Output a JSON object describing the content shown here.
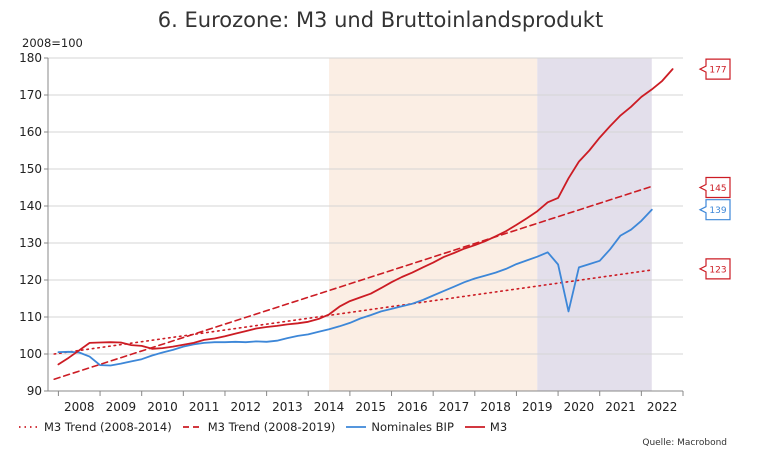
{
  "chart_data": {
    "type": "line",
    "title": "6. Eurozone: M3 und Bruttoinlandsprodukt",
    "y_unit": "2008=100",
    "ylim": [
      90,
      180
    ],
    "y_ticks": [
      "90",
      "100",
      "110",
      "120",
      "130",
      "140",
      "150",
      "160",
      "170",
      "180"
    ],
    "x_ticks": [
      "2008",
      "2009",
      "2010",
      "2011",
      "2012",
      "2013",
      "2014",
      "2015",
      "2016",
      "2017",
      "2018",
      "2019",
      "2020",
      "2021",
      "2022"
    ],
    "xlim": [
      2007.75,
      2023.0
    ],
    "shaded_ranges": [
      {
        "from": 2014.5,
        "to": 2019.5,
        "color": "#fbeee4"
      },
      {
        "from": 2019.5,
        "to": 2022.25,
        "color": "#e3dfeb"
      }
    ],
    "series": [
      {
        "name": "M3 Trend (2008-2014)",
        "color": "#cc1c24",
        "style": "dotted",
        "points": [
          [
            2007.9,
            100.0
          ],
          [
            2022.25,
            122.7
          ]
        ]
      },
      {
        "name": "M3 Trend (2008-2019)",
        "color": "#cc1c24",
        "style": "dashed",
        "points": [
          [
            2007.9,
            93.2
          ],
          [
            2022.25,
            145.3
          ]
        ]
      },
      {
        "name": "Nominales BIP",
        "color": "#3d87d8",
        "style": "solid",
        "points": [
          [
            2008.0,
            100.5
          ],
          [
            2008.25,
            100.6
          ],
          [
            2008.5,
            100.4
          ],
          [
            2008.75,
            99.3
          ],
          [
            2009.0,
            97.0
          ],
          [
            2009.25,
            96.9
          ],
          [
            2009.5,
            97.4
          ],
          [
            2009.75,
            98.0
          ],
          [
            2010.0,
            98.6
          ],
          [
            2010.25,
            99.6
          ],
          [
            2010.5,
            100.4
          ],
          [
            2010.75,
            101.1
          ],
          [
            2011.0,
            102.0
          ],
          [
            2011.25,
            102.6
          ],
          [
            2011.5,
            103.0
          ],
          [
            2011.75,
            103.2
          ],
          [
            2012.0,
            103.2
          ],
          [
            2012.25,
            103.3
          ],
          [
            2012.5,
            103.2
          ],
          [
            2012.75,
            103.4
          ],
          [
            2013.0,
            103.3
          ],
          [
            2013.25,
            103.6
          ],
          [
            2013.5,
            104.3
          ],
          [
            2013.75,
            104.9
          ],
          [
            2014.0,
            105.3
          ],
          [
            2014.25,
            106.0
          ],
          [
            2014.5,
            106.7
          ],
          [
            2014.75,
            107.5
          ],
          [
            2015.0,
            108.4
          ],
          [
            2015.25,
            109.6
          ],
          [
            2015.5,
            110.5
          ],
          [
            2015.75,
            111.5
          ],
          [
            2016.0,
            112.2
          ],
          [
            2016.25,
            112.9
          ],
          [
            2016.5,
            113.6
          ],
          [
            2016.75,
            114.6
          ],
          [
            2017.0,
            115.8
          ],
          [
            2017.25,
            117.0
          ],
          [
            2017.5,
            118.2
          ],
          [
            2017.75,
            119.4
          ],
          [
            2018.0,
            120.4
          ],
          [
            2018.25,
            121.2
          ],
          [
            2018.5,
            122.0
          ],
          [
            2018.75,
            123.0
          ],
          [
            2019.0,
            124.3
          ],
          [
            2019.25,
            125.3
          ],
          [
            2019.5,
            126.3
          ],
          [
            2019.75,
            127.5
          ],
          [
            2020.0,
            124.2
          ],
          [
            2020.25,
            111.5
          ],
          [
            2020.5,
            123.4
          ],
          [
            2020.75,
            124.3
          ],
          [
            2021.0,
            125.2
          ],
          [
            2021.25,
            128.3
          ],
          [
            2021.5,
            132.0
          ],
          [
            2021.75,
            133.6
          ],
          [
            2022.0,
            136.0
          ],
          [
            2022.25,
            139.0
          ]
        ]
      },
      {
        "name": "M3",
        "color": "#cc1c24",
        "style": "solid",
        "points": [
          [
            2008.0,
            97.2
          ],
          [
            2008.25,
            99.0
          ],
          [
            2008.5,
            101.0
          ],
          [
            2008.75,
            103.0
          ],
          [
            2009.0,
            103.1
          ],
          [
            2009.25,
            103.2
          ],
          [
            2009.5,
            103.1
          ],
          [
            2009.75,
            102.4
          ],
          [
            2010.0,
            102.2
          ],
          [
            2010.25,
            101.4
          ],
          [
            2010.5,
            101.6
          ],
          [
            2010.75,
            102.0
          ],
          [
            2011.0,
            102.5
          ],
          [
            2011.25,
            103.0
          ],
          [
            2011.5,
            103.8
          ],
          [
            2011.75,
            104.2
          ],
          [
            2012.0,
            104.8
          ],
          [
            2012.25,
            105.5
          ],
          [
            2012.5,
            106.2
          ],
          [
            2012.75,
            106.9
          ],
          [
            2013.0,
            107.3
          ],
          [
            2013.25,
            107.6
          ],
          [
            2013.5,
            108.0
          ],
          [
            2013.75,
            108.3
          ],
          [
            2014.0,
            108.7
          ],
          [
            2014.25,
            109.5
          ],
          [
            2014.5,
            110.7
          ],
          [
            2014.75,
            112.8
          ],
          [
            2015.0,
            114.3
          ],
          [
            2015.25,
            115.3
          ],
          [
            2015.5,
            116.3
          ],
          [
            2015.75,
            117.8
          ],
          [
            2016.0,
            119.4
          ],
          [
            2016.25,
            120.8
          ],
          [
            2016.5,
            122.0
          ],
          [
            2016.75,
            123.4
          ],
          [
            2017.0,
            124.7
          ],
          [
            2017.25,
            126.2
          ],
          [
            2017.5,
            127.3
          ],
          [
            2017.75,
            128.5
          ],
          [
            2018.0,
            129.4
          ],
          [
            2018.25,
            130.5
          ],
          [
            2018.5,
            131.8
          ],
          [
            2018.75,
            133.2
          ],
          [
            2019.0,
            134.9
          ],
          [
            2019.25,
            136.7
          ],
          [
            2019.5,
            138.6
          ],
          [
            2019.75,
            141.0
          ],
          [
            2020.0,
            142.2
          ],
          [
            2020.25,
            147.5
          ],
          [
            2020.5,
            152.0
          ],
          [
            2020.75,
            155.0
          ],
          [
            2021.0,
            158.5
          ],
          [
            2021.25,
            161.6
          ],
          [
            2021.5,
            164.5
          ],
          [
            2021.75,
            166.8
          ],
          [
            2022.0,
            169.5
          ],
          [
            2022.25,
            171.5
          ],
          [
            2022.5,
            173.8
          ],
          [
            2022.75,
            177.0
          ]
        ]
      }
    ],
    "end_labels": [
      {
        "text": "177",
        "value": 177,
        "color": "#cc1c24"
      },
      {
        "text": "145",
        "value": 145,
        "color": "#cc1c24"
      },
      {
        "text": "139",
        "value": 139,
        "color": "#3d87d8"
      },
      {
        "text": "123",
        "value": 123,
        "color": "#cc1c24"
      }
    ],
    "grid": {
      "horizontal": true,
      "vertical": false
    },
    "legend_position": "bottom-left",
    "legend": [
      {
        "label": "M3 Trend (2008-2014)",
        "color": "#cc1c24",
        "style": "dotted"
      },
      {
        "label": "M3 Trend (2008-2019)",
        "color": "#cc1c24",
        "style": "dashed"
      },
      {
        "label": "Nominales BIP",
        "color": "#3d87d8",
        "style": "solid"
      },
      {
        "label": "M3",
        "color": "#cc1c24",
        "style": "solid"
      }
    ],
    "source": "Quelle: Macrobond"
  }
}
